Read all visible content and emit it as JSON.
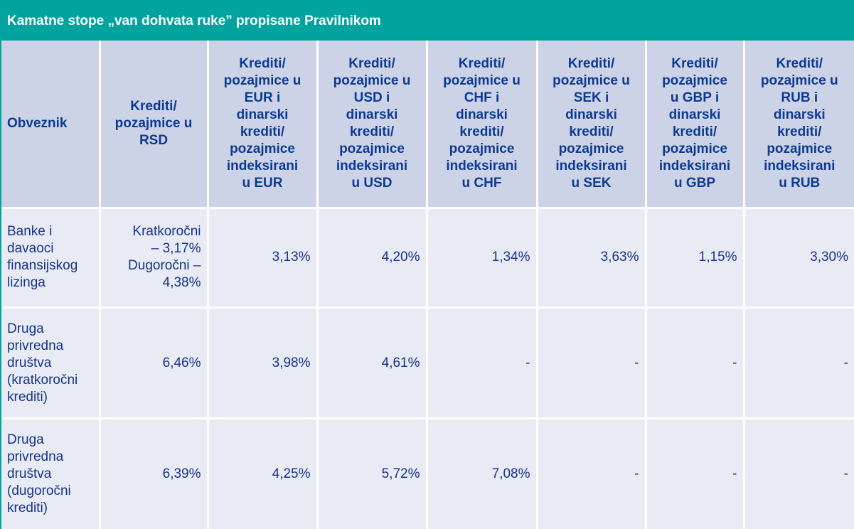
{
  "title": "Kamatne stope „van dohvata ruke” propisane Pravilnikom",
  "headers": [
    "Obveznik",
    "Krediti/\npozajmice u\nRSD",
    "Krediti/\npozajmice u\nEUR i\ndinarski\nkrediti/\npozajmice\nindeksirani\nu EUR",
    "Krediti/\npozajmice u\nUSD i\ndinarski\nkrediti/\npozajmice\nindeksirani\nu USD",
    "Krediti/\npozajmice u\nCHF i\ndinarski\nkrediti/\npozajmice\nindeksirani\nu CHF",
    "Krediti/\npozajmice u\nSEK i\ndinarski\nkrediti/\npozajmice\nindeksirani\nu SEK",
    "Krediti/\npozajmice\nu GBP i\ndinarski\nkrediti/\npozajmice\nindeksirani\nu GBP",
    "Krediti/\npozajmice u\nRUB i\ndinarski\nkrediti/\npozajmice\nindeksirani\nu RUB"
  ],
  "rows": [
    [
      "Banke i\ndavaoci\nfinansijskog\nlizinga",
      "Kratkoročni\n– 3,17%\nDugoročni –\n4,38%",
      "3,13%",
      "4,20%",
      "1,34%",
      "3,63%",
      "1,15%",
      "3,30%"
    ],
    [
      "Druga\nprivredna\ndruštva\n(kratkoročni\nkrediti)",
      "6,46%",
      "3,98%",
      "4,61%",
      "-",
      "-",
      "-",
      "-"
    ],
    [
      "Druga\nprivredna\ndruštva\n(dugoročni\nkrediti)",
      "6,39%",
      "4,25%",
      "5,72%",
      "7,08%",
      "-",
      "-",
      "-"
    ]
  ]
}
